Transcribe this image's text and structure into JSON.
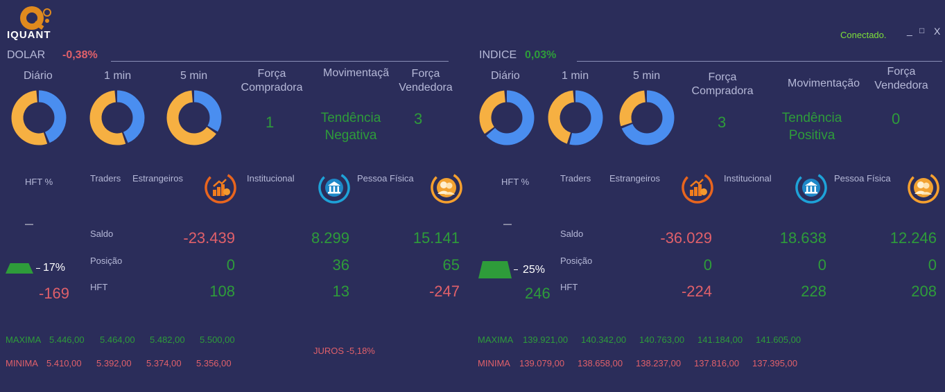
{
  "app": {
    "logo_text": "IQUANT",
    "status": "Conectado.",
    "controls": {
      "minimize": "_",
      "maximize": "□",
      "close": "X"
    }
  },
  "colors": {
    "background": "#2b2d5a",
    "green": "#2e9c3a",
    "red": "#e0606a",
    "ring_orange": "#f6b042",
    "ring_blue": "#4a8ef0"
  },
  "panels": [
    {
      "id": "dolar",
      "asset": "DOLAR",
      "change": "-0,38%",
      "change_trend": "down",
      "timeframes": [
        {
          "label": "Diário",
          "blue_fraction": 0.45
        },
        {
          "label": "1 min",
          "blue_fraction": 0.45
        },
        {
          "label": "5 min",
          "blue_fraction": 0.35
        }
      ],
      "forca_compradora_label": "Força Compradora",
      "forca_compradora": "1",
      "movimentacao_label": "Movimentação",
      "tendencia": [
        "Tendência",
        "Negativa"
      ],
      "forca_vendedora_label": "Força Vendedora",
      "forca_vendedora": "3",
      "hft_label": "HFT %",
      "hft_dash": "—",
      "hft_percent": "17%",
      "hft_fraction": 0.17,
      "hft_value": "-169",
      "groups": [
        "Traders",
        "Estrangeiros",
        "Institucional",
        "Pessoa Física"
      ],
      "row_labels": [
        "Saldo",
        "Posição",
        "HFT"
      ],
      "estrangeiros": {
        "saldo": "-23.439",
        "posicao": "0",
        "hft": "108"
      },
      "institucional": {
        "saldo": "8.299",
        "posicao": "36",
        "hft": "13"
      },
      "pessoa_fisica": {
        "saldo": "15.141",
        "posicao": "65",
        "hft": "-247"
      },
      "maxima_label": "MAXIMA",
      "maxima": [
        "5.446,00",
        "5.464,00",
        "5.482,00",
        "5.500,00"
      ],
      "minima_label": "MINIMA",
      "minima": [
        "5.410,00",
        "5.392,00",
        "5.374,00",
        "5.356,00"
      ],
      "juros": "JUROS -5,18%"
    },
    {
      "id": "indice",
      "asset": "INDICE",
      "change": "0,03%",
      "change_trend": "up",
      "timeframes": [
        {
          "label": "Diário",
          "blue_fraction": 0.65
        },
        {
          "label": "1 min",
          "blue_fraction": 0.55
        },
        {
          "label": "5 min",
          "blue_fraction": 0.7
        }
      ],
      "forca_compradora_label": "Força Compradora",
      "forca_compradora": "3",
      "movimentacao_label": "Movimentação",
      "tendencia": [
        "Tendência",
        "Positiva"
      ],
      "forca_vendedora_label": "Força Vendedora",
      "forca_vendedora": "0",
      "hft_label": "HFT %",
      "hft_dash": "—",
      "hft_percent": "25%",
      "hft_fraction": 0.25,
      "hft_value": "246",
      "groups": [
        "Traders",
        "Estrangeiros",
        "Institucional",
        "Pessoa Física"
      ],
      "row_labels": [
        "Saldo",
        "Posição",
        "HFT"
      ],
      "estrangeiros": {
        "saldo": "-36.029",
        "posicao": "0",
        "hft": "-224"
      },
      "institucional": {
        "saldo": "18.638",
        "posicao": "0",
        "hft": "228"
      },
      "pessoa_fisica": {
        "saldo": "12.246",
        "posicao": "0",
        "hft": "208"
      },
      "maxima_label": "MAXIMA",
      "maxima": [
        "139.921,00",
        "140.342,00",
        "140.763,00",
        "141.184,00",
        "141.605,00"
      ],
      "minima_label": "MINIMA",
      "minima": [
        "139.079,00",
        "138.658,00",
        "138.237,00",
        "137.816,00",
        "137.395,00"
      ]
    }
  ]
}
